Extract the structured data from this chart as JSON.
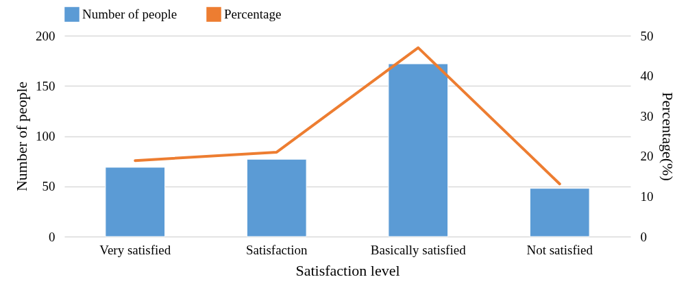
{
  "chart_data": {
    "type": "bar",
    "xlabel": "Satisfaction level",
    "ylabel": "Number of people",
    "y2label": "Percentage(%)",
    "categories": [
      "Very satisfied",
      "Satisfaction",
      "Basically satisfied",
      "Not satisfied"
    ],
    "series": [
      {
        "name": "Number of people",
        "color": "#5b9bd5",
        "values": [
          69,
          77,
          172,
          48
        ]
      },
      {
        "name": "Percentage",
        "type": "line",
        "axis": "y2",
        "color": "#ed7d31",
        "values": [
          18.9,
          21.0,
          47.0,
          13.1
        ]
      }
    ],
    "ylim": [
      0,
      200
    ],
    "yticks": [
      0,
      50,
      100,
      150,
      200
    ],
    "y2lim": [
      0,
      50
    ],
    "y2ticks": [
      0,
      10,
      20,
      30,
      40,
      50
    ],
    "grid": "y",
    "legend": "top",
    "marker": "none",
    "line_style": "solid"
  }
}
